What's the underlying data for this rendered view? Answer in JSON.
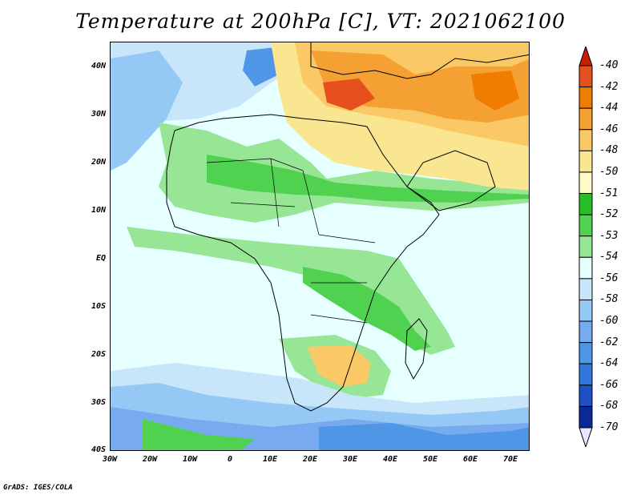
{
  "title": "Temperature at 200hPa [C], VT: 2021062100",
  "footer": "GrADS: IGES/COLA",
  "lat_labels": [
    "40N",
    "30N",
    "20N",
    "10N",
    "EQ",
    "10S",
    "20S",
    "30S",
    "40S"
  ],
  "lon_labels": [
    "30W",
    "20W",
    "10W",
    "0",
    "10E",
    "20E",
    "30E",
    "40E",
    "50E",
    "60E",
    "70E"
  ],
  "colorbar": {
    "labels": [
      "-40",
      "-42",
      "-44",
      "-46",
      "-48",
      "-50",
      "-51",
      "-52",
      "-53",
      "-54",
      "-56",
      "-58",
      "-60",
      "-62",
      "-64",
      "-66",
      "-68",
      "-70"
    ],
    "colors": [
      "#c81e00",
      "#e6501e",
      "#f07d00",
      "#f5a032",
      "#fac864",
      "#fae690",
      "#fffac8",
      "#28be28",
      "#50d250",
      "#96e696",
      "#e6ffff",
      "#c8e6fa",
      "#96c8f5",
      "#78aaf0",
      "#5096e6",
      "#3278dc",
      "#1e50c8",
      "#0a2896",
      "#e6e6ff"
    ]
  },
  "chart_data": {
    "type": "heatmap",
    "variable": "Temperature at 200hPa",
    "units": "C",
    "valid_time": "2021062100",
    "lon_range": [
      -30,
      75
    ],
    "lat_range": [
      -40,
      45
    ],
    "levels": [
      -40,
      -42,
      -44,
      -46,
      -48,
      -50,
      -51,
      -52,
      -53,
      -54,
      -56,
      -58,
      -60,
      -62,
      -64,
      -66,
      -68,
      -70
    ]
  }
}
